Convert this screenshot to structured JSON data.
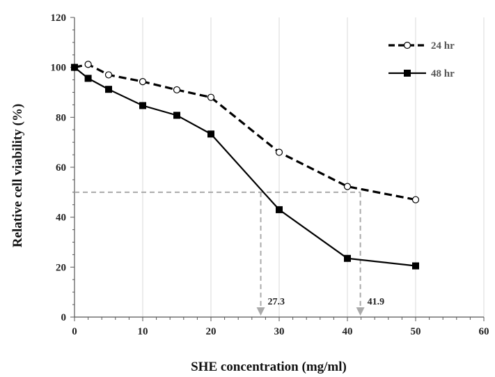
{
  "chart_data": {
    "type": "line",
    "xlabel": "SHE concentration  (mg/ml)",
    "ylabel": "Relative cell viability  (%)",
    "xlim": [
      0,
      60
    ],
    "ylim": [
      0,
      120
    ],
    "x_ticks": [
      "0",
      "10",
      "20",
      "30",
      "40",
      "50",
      "60"
    ],
    "y_ticks": [
      "0",
      "20",
      "40",
      "60",
      "80",
      "100",
      "120"
    ],
    "grid": "vertical",
    "legend_position": "top-right",
    "series": [
      {
        "name": "24 hr",
        "style": "dashed",
        "marker": "open-circle",
        "color": "#000000",
        "x": [
          0,
          2,
          5,
          10,
          15,
          20,
          30,
          40,
          50
        ],
        "values": [
          100,
          101.2,
          97,
          94.3,
          91,
          88,
          66,
          52.3,
          47
        ]
      },
      {
        "name": "48 hr",
        "style": "solid",
        "marker": "filled-square",
        "color": "#000000",
        "x": [
          0,
          2,
          5,
          10,
          15,
          20,
          30,
          40,
          50
        ],
        "values": [
          100,
          95.6,
          91.2,
          84.7,
          80.8,
          73.3,
          43,
          23.5,
          20.5
        ]
      }
    ],
    "annotations": [
      {
        "label": "27.3",
        "x": 27.3,
        "y": 50
      },
      {
        "label": "41.9",
        "x": 41.9,
        "y": 50
      }
    ],
    "annotation_color": "#aaaaaa"
  }
}
